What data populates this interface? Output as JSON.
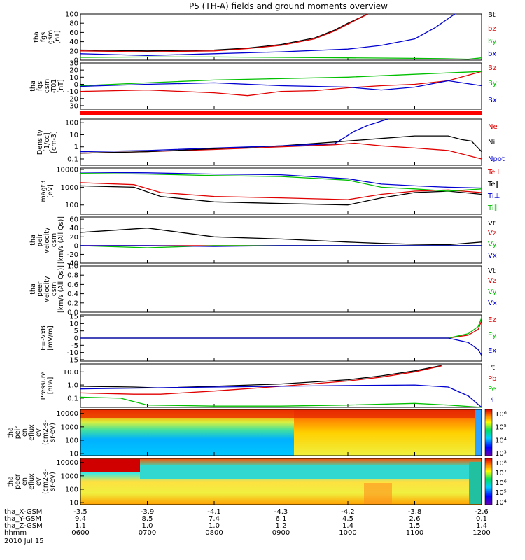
{
  "title": "P5 (TH-A) fields and ground moments overview",
  "date_label": "2010 Jul 15",
  "footer_rows": [
    {
      "label": "tha_X-GSM",
      "values": [
        "-3.5",
        "-3.9",
        "-4.1",
        "-4.3",
        "-4.2",
        "-3.8",
        "-2.6"
      ]
    },
    {
      "label": "tha_Y-GSM",
      "values": [
        "9.4",
        "8.5",
        "7.4",
        "6.1",
        "4.5",
        "2.6",
        "0.1"
      ]
    },
    {
      "label": "tha_Z-GSM",
      "values": [
        "1.1",
        "1.0",
        "1.0",
        "1.2",
        "1.4",
        "1.5",
        "1.4"
      ]
    },
    {
      "label": "hhmm",
      "values": [
        "0600",
        "0700",
        "0800",
        "0900",
        "1000",
        "1100",
        "1200"
      ]
    }
  ],
  "colorbar_ticks": {
    "peir": [
      "10⁶",
      "10⁵",
      "10⁴",
      "10³"
    ],
    "peer": [
      "10⁸",
      "10⁷",
      "10⁶",
      "10⁵",
      "10⁴"
    ]
  },
  "chart_data": {
    "type": "line",
    "x_range": [
      "0600",
      "1200"
    ],
    "x_ticks": [
      "0600",
      "0700",
      "0800",
      "0900",
      "1000",
      "1100",
      "1200"
    ],
    "panels": [
      {
        "id": "fgs",
        "ylabel": [
          "tha",
          "fgs",
          "gsm",
          "[nT]"
        ],
        "ylim": [
          0,
          100
        ],
        "yticks": [
          "100",
          "80",
          "60",
          "40",
          "20",
          "0"
        ],
        "series": [
          {
            "name": "Bt",
            "color": "#000000",
            "x": [
              6.0,
              7.0,
              8.0,
              8.5,
              9.0,
              9.5,
              9.8,
              10.0,
              10.3
            ],
            "y": [
              22,
              20,
              22,
              26,
              34,
              48,
              65,
              80,
              100
            ]
          },
          {
            "name": "bz",
            "color": "#e00000",
            "x": [
              6.0,
              7.0,
              8.0,
              8.5,
              9.0,
              9.5,
              9.8,
              10.0,
              10.3
            ],
            "y": [
              20,
              18,
              20,
              25,
              32,
              46,
              63,
              78,
              100
            ]
          },
          {
            "name": "by",
            "color": "#00c000",
            "x": [
              6.0,
              7.0,
              8.0,
              9.0,
              10.0,
              11.0,
              11.5,
              11.8,
              12.0
            ],
            "y": [
              6,
              7,
              7,
              6,
              5,
              4,
              3,
              2,
              5
            ]
          },
          {
            "name": "bx",
            "color": "#0000d0",
            "x": [
              6.0,
              7.0,
              8.0,
              9.0,
              10.0,
              10.5,
              11.0,
              11.3,
              11.6
            ],
            "y": [
              14,
              10,
              14,
              18,
              24,
              32,
              46,
              70,
              100
            ]
          }
        ]
      },
      {
        "id": "fgs_dif",
        "ylabel": [
          "tha",
          "fgs",
          "gsm",
          "-T01",
          "[nT]"
        ],
        "ylim": [
          -35,
          30
        ],
        "yticks": [
          "30",
          "20",
          "10",
          "0",
          "-10",
          "-20",
          "-30"
        ],
        "series": [
          {
            "name": "Bz",
            "color": "#e00000",
            "x": [
              6.0,
              7.0,
              8.0,
              8.5,
              9.0,
              9.5,
              10.0,
              10.5,
              11.0,
              11.5,
              12.0
            ],
            "y": [
              -10,
              -8,
              -12,
              -16,
              -10,
              -9,
              -5,
              -2,
              0,
              5,
              18
            ]
          },
          {
            "name": "By",
            "color": "#00c000",
            "x": [
              6.0,
              7.0,
              8.0,
              9.0,
              10.0,
              11.0,
              11.5,
              12.0
            ],
            "y": [
              -2,
              2,
              6,
              8,
              10,
              14,
              16,
              18
            ]
          },
          {
            "name": "Bx",
            "color": "#0000d0",
            "x": [
              6.0,
              7.0,
              8.0,
              9.0,
              10.0,
              10.5,
              11.0,
              11.5,
              12.0
            ],
            "y": [
              -3,
              0,
              2,
              -2,
              -4,
              -8,
              -4,
              5,
              -2
            ]
          }
        ]
      },
      {
        "id": "density",
        "ylabel": [
          "Density",
          "[1/cc]",
          "[cm-3]"
        ],
        "ylim": [
          0.03,
          200
        ],
        "ylog": true,
        "yticks": [
          "100",
          "10",
          "1",
          "0.1"
        ],
        "series": [
          {
            "name": "Ne",
            "color": "#e00000",
            "x": [
              6.0,
              7.0,
              8.0,
              9.0,
              9.8,
              10.1,
              10.5,
              11.0,
              11.5,
              12.0
            ],
            "y": [
              0.3,
              0.4,
              0.6,
              1.0,
              1.5,
              2,
              1.2,
              0.8,
              0.5,
              0.1
            ]
          },
          {
            "name": "Ni",
            "color": "#000000",
            "x": [
              6.0,
              7.0,
              8.0,
              9.0,
              9.8,
              10.5,
              11.0,
              11.5,
              11.7,
              11.85,
              12.0
            ],
            "y": [
              0.3,
              0.4,
              0.7,
              1.2,
              2.5,
              5,
              8,
              8,
              4,
              3,
              0.4
            ]
          },
          {
            "name": "Npot",
            "color": "#0000d0",
            "x": [
              6.0,
              7.0,
              8.0,
              9.0,
              9.8,
              10.1,
              10.3,
              10.6
            ],
            "y": [
              0.4,
              0.5,
              0.8,
              1.2,
              1.8,
              20,
              60,
              200
            ]
          }
        ]
      },
      {
        "id": "temp",
        "ylabel": [
          "magt3",
          "[eV]"
        ],
        "ylim": [
          30,
          12000
        ],
        "ylog": true,
        "yticks": [
          "10000",
          "1000",
          "100"
        ],
        "series": [
          {
            "name": "Te⊥",
            "color": "#e00000",
            "x": [
              6.0,
              6.8,
              7.2,
              8.0,
              9.0,
              10.0,
              10.5,
              11.0,
              11.5,
              12.0
            ],
            "y": [
              1800,
              1400,
              500,
              300,
              250,
              200,
              400,
              600,
              700,
              500
            ]
          },
          {
            "name": "Te∥",
            "color": "#000000",
            "x": [
              6.0,
              6.8,
              7.2,
              8.0,
              9.0,
              10.0,
              10.5,
              11.0,
              11.5,
              12.0
            ],
            "y": [
              1200,
              1000,
              300,
              150,
              120,
              100,
              250,
              500,
              600,
              400
            ]
          },
          {
            "name": "Ti⊥",
            "color": "#0000d0",
            "x": [
              6.0,
              7.0,
              8.0,
              9.0,
              10.0,
              10.5,
              11.0,
              11.5,
              12.0
            ],
            "y": [
              7000,
              6500,
              5500,
              5000,
              3000,
              1500,
              1200,
              1000,
              900
            ]
          },
          {
            "name": "Ti∥",
            "color": "#00c000",
            "x": [
              6.0,
              7.0,
              8.0,
              9.0,
              10.0,
              10.5,
              11.0,
              11.5,
              12.0
            ],
            "y": [
              6000,
              5500,
              4500,
              4000,
              2500,
              1000,
              800,
              600,
              800
            ]
          }
        ]
      },
      {
        "id": "peir_vel",
        "ylabel": [
          "tha",
          "peir",
          "velocity",
          "gsm",
          "[km/s (All Qs)]"
        ],
        "ylim": [
          -40,
          65
        ],
        "yticks": [
          "60",
          "40",
          "20",
          "0",
          "-20",
          "-40"
        ],
        "series": [
          {
            "name": "Vt",
            "color": "#000000",
            "x": [
              6.0,
              7.0,
              8.0,
              9.0,
              10.0,
              10.5,
              11.0,
              11.5,
              12.0
            ],
            "y": [
              30,
              40,
              20,
              15,
              8,
              5,
              3,
              2,
              8
            ]
          },
          {
            "name": "Vz",
            "color": "#e00000",
            "x": [
              6.0,
              7.0,
              8.0,
              9.0,
              10.0,
              11.0,
              12.0
            ],
            "y": [
              0,
              0,
              0,
              0,
              0,
              0,
              0
            ]
          },
          {
            "name": "Vy",
            "color": "#00c000",
            "x": [
              6.0,
              7.0,
              8.0,
              9.0,
              10.0,
              11.0,
              12.0
            ],
            "y": [
              0,
              -5,
              0,
              0,
              0,
              0,
              0
            ]
          },
          {
            "name": "Vx",
            "color": "#0000d0",
            "x": [
              6.0,
              7.0,
              8.0,
              9.0,
              10.0,
              11.0,
              12.0
            ],
            "y": [
              0,
              0,
              -2,
              0,
              0,
              0,
              0
            ]
          }
        ]
      },
      {
        "id": "peer_vel",
        "ylabel": [
          "tha",
          "peer",
          "velocity",
          "gsm",
          "[km/s (All Qs)]"
        ],
        "ylim": [
          0,
          1
        ],
        "yticks": [
          "1.0",
          "0.8",
          "0.6",
          "0.4",
          "0.2",
          "0.0"
        ],
        "series": [
          {
            "name": "Vt",
            "color": "#000000",
            "x": [],
            "y": []
          },
          {
            "name": "Vz",
            "color": "#e00000",
            "x": [],
            "y": []
          },
          {
            "name": "Vy",
            "color": "#00c000",
            "x": [],
            "y": []
          },
          {
            "name": "Vx",
            "color": "#0000d0",
            "x": [],
            "y": []
          }
        ]
      },
      {
        "id": "efield",
        "ylabel": [
          "E=-VxB",
          "[mV/m]"
        ],
        "ylim": [
          -16,
          16
        ],
        "yticks": [
          "15",
          "10",
          "5",
          "0",
          "-5",
          "-10",
          "-15"
        ],
        "series": [
          {
            "name": "Ez",
            "color": "#e00000",
            "x": [
              6.0,
              8.0,
              10.0,
              11.5,
              11.8,
              11.95,
              12.0
            ],
            "y": [
              0,
              0,
              0,
              0,
              2,
              6,
              12
            ]
          },
          {
            "name": "Ey",
            "color": "#00c000",
            "x": [
              6.0,
              8.0,
              10.0,
              11.5,
              11.8,
              11.95,
              12.0
            ],
            "y": [
              0,
              0,
              0,
              0,
              3,
              8,
              14
            ]
          },
          {
            "name": "Ex",
            "color": "#0000d0",
            "x": [
              6.0,
              8.0,
              10.0,
              11.5,
              11.8,
              11.95,
              12.0
            ],
            "y": [
              0,
              0,
              0,
              0,
              -3,
              -8,
              -12
            ]
          }
        ]
      },
      {
        "id": "pressure",
        "ylabel": [
          "Pressure",
          "[nPa]"
        ],
        "ylim": [
          0.02,
          40
        ],
        "ylog": true,
        "yticks": [
          "10.0",
          "1.0",
          "0.1"
        ],
        "series": [
          {
            "name": "Pt",
            "color": "#000000",
            "x": [
              6.0,
              6.8,
              7.2,
              8.0,
              9.0,
              10.0,
              10.5,
              11.0,
              11.4
            ],
            "y": [
              0.8,
              0.7,
              0.6,
              0.8,
              1.2,
              2.5,
              5,
              12,
              30
            ]
          },
          {
            "name": "Pb",
            "color": "#e00000",
            "x": [
              6.0,
              6.8,
              7.2,
              8.0,
              9.0,
              10.0,
              10.5,
              11.0,
              11.4
            ],
            "y": [
              0.25,
              0.2,
              0.2,
              0.35,
              0.8,
              2,
              4,
              10,
              28
            ]
          },
          {
            "name": "Pe",
            "color": "#00c000",
            "x": [
              6.0,
              6.6,
              7.0,
              8.0,
              9.0,
              10.0,
              11.0,
              11.5,
              12.0
            ],
            "y": [
              0.12,
              0.1,
              0.03,
              0.025,
              0.025,
              0.03,
              0.04,
              0.03,
              0.02
            ]
          },
          {
            "name": "Pi",
            "color": "#0000d0",
            "x": [
              6.0,
              7.0,
              8.0,
              9.0,
              10.0,
              11.0,
              11.5,
              11.8,
              12.0
            ],
            "y": [
              0.5,
              0.6,
              0.7,
              0.8,
              0.9,
              1.0,
              0.7,
              0.15,
              0.02
            ]
          }
        ]
      }
    ],
    "spectrograms": [
      {
        "id": "peir_en",
        "ylabel": [
          "tha",
          "peir",
          "en",
          "eflux",
          "eV",
          "(cm2-s-",
          "sr-eV)"
        ],
        "ylim": [
          7,
          20000
        ],
        "ylog": true,
        "yticks": [
          "10000",
          "1000",
          "100",
          "10"
        ],
        "colorbar_range": "10³–10⁶"
      },
      {
        "id": "peer_en",
        "ylabel": [
          "tha",
          "peer",
          "en",
          "eflux",
          "eV",
          "(cm2-s-",
          "sr-eV)"
        ],
        "ylim": [
          7,
          20000
        ],
        "ylog": true,
        "yticks": [
          "10000",
          "1000",
          "100",
          "10"
        ],
        "colorbar_range": "10⁴–10⁸"
      }
    ]
  }
}
